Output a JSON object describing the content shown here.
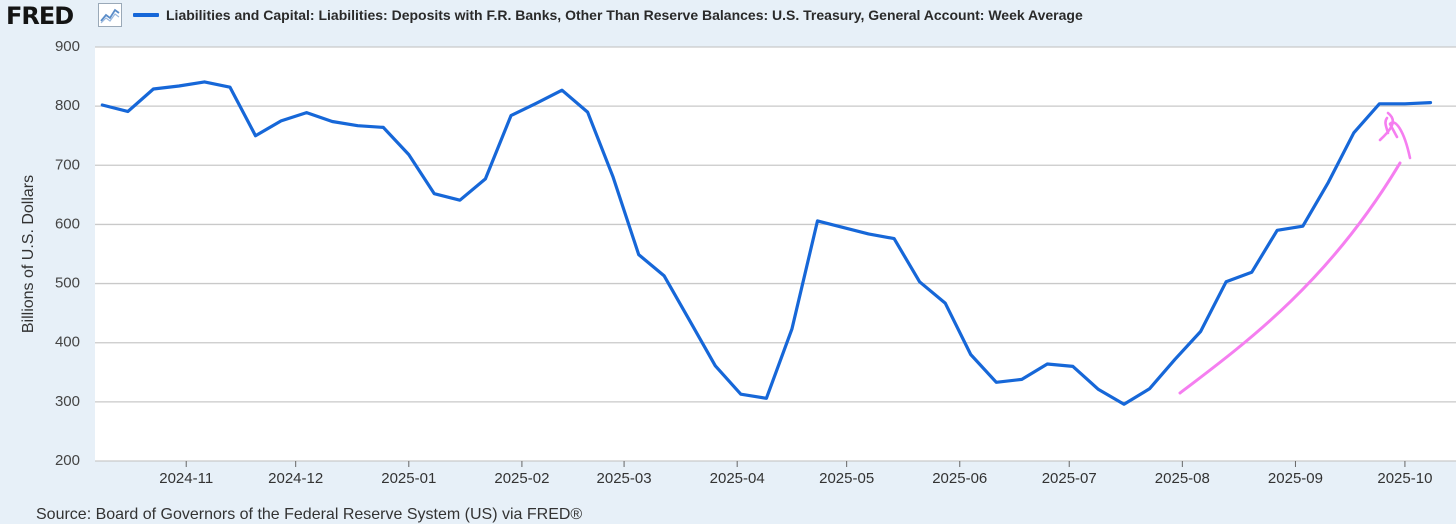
{
  "header": {
    "logo_text": "FRED",
    "logo_icon": "line-chart-icon",
    "series_title": "Liabilities and Capital: Liabilities: Deposits with F.R. Banks, Other Than Reserve Balances: U.S. Treasury, General Account: Week Average"
  },
  "footer": {
    "source": "Source: Board of Governors of the Federal Reserve System (US) via FRED®"
  },
  "colors": {
    "series_line": "#1667d8",
    "annotation_arrow": "#f57ef0",
    "grid": "#c9c9c9",
    "plot_background": "#ffffff",
    "page_background": "#e7f0f8"
  },
  "chart_data": {
    "type": "line",
    "ylabel": "Billions of U.S. Dollars",
    "ylim": [
      200,
      900
    ],
    "yticks": [
      200,
      300,
      400,
      500,
      600,
      700,
      800,
      900
    ],
    "x_axis_type": "date",
    "xlim": [
      "2024-10-07",
      "2025-10-15"
    ],
    "xticks": [
      "2024-11",
      "2024-12",
      "2025-01",
      "2025-02",
      "2025-03",
      "2025-04",
      "2025-05",
      "2025-06",
      "2025-07",
      "2025-08",
      "2025-09",
      "2025-10"
    ],
    "grid": "horizontal",
    "annotation": "hand-drawn upward arrow",
    "series": [
      {
        "x": [
          "2024-10-09",
          "2024-10-16",
          "2024-10-23",
          "2024-10-30",
          "2024-11-06",
          "2024-11-13",
          "2024-11-20",
          "2024-11-27",
          "2024-12-04",
          "2024-12-11",
          "2024-12-18",
          "2024-12-25",
          "2025-01-01",
          "2025-01-08",
          "2025-01-15",
          "2025-01-22",
          "2025-01-29",
          "2025-02-05",
          "2025-02-12",
          "2025-02-19",
          "2025-02-26",
          "2025-03-05",
          "2025-03-12",
          "2025-03-19",
          "2025-03-26",
          "2025-04-02",
          "2025-04-09",
          "2025-04-16",
          "2025-04-23",
          "2025-04-30",
          "2025-05-07",
          "2025-05-14",
          "2025-05-21",
          "2025-05-28",
          "2025-06-04",
          "2025-06-11",
          "2025-06-18",
          "2025-06-25",
          "2025-07-02",
          "2025-07-09",
          "2025-07-16",
          "2025-07-23",
          "2025-07-30",
          "2025-08-06",
          "2025-08-13",
          "2025-08-20",
          "2025-08-27",
          "2025-09-03",
          "2025-09-10",
          "2025-09-17",
          "2025-09-24",
          "2025-10-01",
          "2025-10-08"
        ],
        "values": [
          802,
          791,
          829,
          834,
          841,
          832,
          750,
          775,
          789,
          774,
          767,
          764,
          718,
          652,
          641,
          677,
          784,
          805,
          827,
          790,
          680,
          549,
          513,
          437,
          361,
          313,
          306,
          423,
          606,
          595,
          584,
          576,
          503,
          467,
          380,
          333,
          338,
          364,
          360,
          321,
          296,
          322,
          372,
          419,
          503,
          519,
          590,
          597,
          671,
          755,
          804,
          804,
          806
        ]
      }
    ]
  }
}
